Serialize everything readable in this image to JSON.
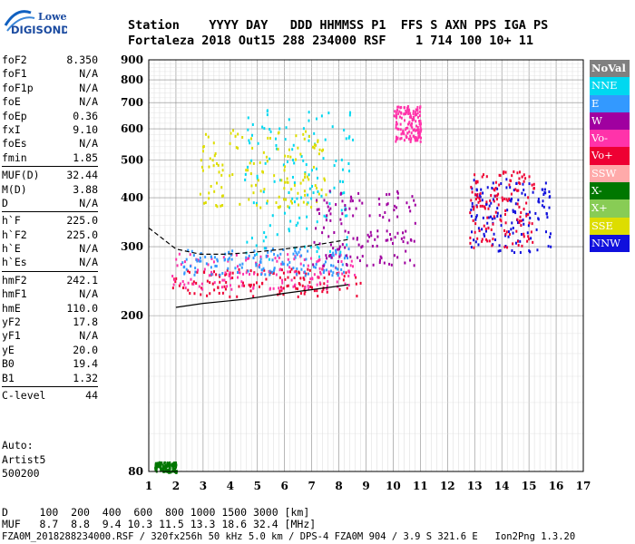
{
  "logo": {
    "line1": "Lowell",
    "line2": "DIGISONDE"
  },
  "header": {
    "row1": "Station    YYYY DAY   DDD HHMMSS P1  FFS S AXN PPS IGA PS",
    "row2": "Fortaleza 2018 Out15 288 234000 RSF    1 714 100 10+ 11"
  },
  "params": {
    "group1": [
      {
        "label": "foF2",
        "value": "8.350"
      },
      {
        "label": "foF1",
        "value": "N/A"
      },
      {
        "label": "foF1p",
        "value": "N/A"
      },
      {
        "label": "foE",
        "value": "N/A"
      },
      {
        "label": "foEp",
        "value": "0.36"
      },
      {
        "label": "fxI",
        "value": "9.10"
      },
      {
        "label": "foEs",
        "value": "N/A"
      },
      {
        "label": "fmin",
        "value": "1.85"
      }
    ],
    "group2": [
      {
        "label": "MUF(D)",
        "value": "32.44"
      },
      {
        "label": "M(D)",
        "value": "3.88"
      },
      {
        "label": "D",
        "value": "N/A"
      }
    ],
    "group3": [
      {
        "label": "h`F",
        "value": "225.0"
      },
      {
        "label": "h`F2",
        "value": "225.0"
      },
      {
        "label": "h`E",
        "value": "N/A"
      },
      {
        "label": "h`Es",
        "value": "N/A"
      }
    ],
    "group4": [
      {
        "label": "hmF2",
        "value": "242.1"
      },
      {
        "label": "hmF1",
        "value": "N/A"
      },
      {
        "label": "hmE",
        "value": "110.0"
      },
      {
        "label": "yF2",
        "value": "17.8"
      },
      {
        "label": "yF1",
        "value": "N/A"
      },
      {
        "label": "yE",
        "value": "20.0"
      },
      {
        "label": "B0",
        "value": "19.4"
      },
      {
        "label": "B1",
        "value": "1.32"
      }
    ],
    "group5": [
      {
        "label": "C-level",
        "value": "44"
      }
    ]
  },
  "auto": {
    "line1": "Auto:",
    "line2": "Artist5",
    "line3": "500200"
  },
  "bottom": {
    "d_row": "D     100  200  400  600  800 1000 1500 3000 [km]",
    "muf_row": "MUF   8.7  8.8  9.4 10.3 11.5 13.3 18.6 32.4 [MHz]",
    "footer": "FZA0M_2018288234000.RSF / 320fx256h 50 kHz 5.0 km / DPS-4 FZA0M 904 / 3.9 S 321.6 E   Ion2Png 1.3.20"
  },
  "legend": [
    {
      "label": "NoVal",
      "color": "#808080"
    },
    {
      "label": "NNE",
      "color": "#00d8f0"
    },
    {
      "label": "E",
      "color": "#3399ff"
    },
    {
      "label": "W",
      "color": "#a000a0"
    },
    {
      "label": "Vo-",
      "color": "#ff33aa"
    },
    {
      "label": "Vo+",
      "color": "#ee0033"
    },
    {
      "label": "SSW",
      "color": "#ffaaaa"
    },
    {
      "label": "X-",
      "color": "#007700"
    },
    {
      "label": "X+",
      "color": "#88cc55"
    },
    {
      "label": "SSE",
      "color": "#dddd00"
    },
    {
      "label": "NNW",
      "color": "#1010dd"
    }
  ],
  "chart_data": {
    "type": "scatter",
    "title": "",
    "xlabel": "",
    "ylabel": "",
    "xlim": [
      1,
      17
    ],
    "ylim": [
      80,
      900
    ],
    "x_ticks": [
      "1",
      "2",
      "3",
      "4",
      "5",
      "6",
      "7",
      "8",
      "9",
      "10",
      "11",
      "12",
      "13",
      "14",
      "15",
      "16",
      "17"
    ],
    "y_ticks": [
      "80",
      "200",
      "300",
      "400",
      "500",
      "600",
      "700",
      "800",
      "900"
    ],
    "y_scale": "log",
    "grid": true,
    "legend_placement": "right",
    "series": [
      {
        "color": "#ee0033",
        "cluster": [
          1.8,
          8.8,
          225,
          265
        ]
      },
      {
        "color": "#ff33aa",
        "cluster": [
          1.8,
          8.6,
          235,
          290
        ]
      },
      {
        "color": "#3399ff",
        "cluster": [
          2.2,
          8.4,
          255,
          300
        ]
      },
      {
        "color": "#00d8f0",
        "cluster": [
          4.5,
          8.5,
          280,
          690
        ]
      },
      {
        "color": "#dddd00",
        "cluster": [
          2.8,
          7.5,
          380,
          600
        ]
      },
      {
        "color": "#a000a0",
        "cluster": [
          7.0,
          10.8,
          270,
          420
        ]
      },
      {
        "color": "#1010dd",
        "cluster": [
          12.8,
          15.8,
          290,
          450
        ]
      },
      {
        "color": "#ee0033",
        "cluster": [
          12.8,
          15.2,
          300,
          470
        ]
      },
      {
        "color": "#ff33aa",
        "cluster": [
          10.0,
          11.0,
          560,
          690
        ]
      },
      {
        "color": "#007700",
        "cluster": [
          1.2,
          2.0,
          80,
          85
        ]
      }
    ],
    "traces": [
      {
        "style": "solid",
        "x": [
          2.0,
          3.0,
          4.5,
          6.0,
          7.0,
          8.0,
          8.35
        ],
        "y": [
          210,
          215,
          220,
          228,
          233,
          238,
          240
        ]
      },
      {
        "style": "dashed",
        "x": [
          1.0,
          2.0,
          2.9,
          3.8,
          4.8,
          6.0,
          7.0,
          8.0,
          8.35
        ],
        "y": [
          335,
          296,
          287,
          287,
          290,
          296,
          302,
          310,
          313
        ]
      }
    ]
  }
}
